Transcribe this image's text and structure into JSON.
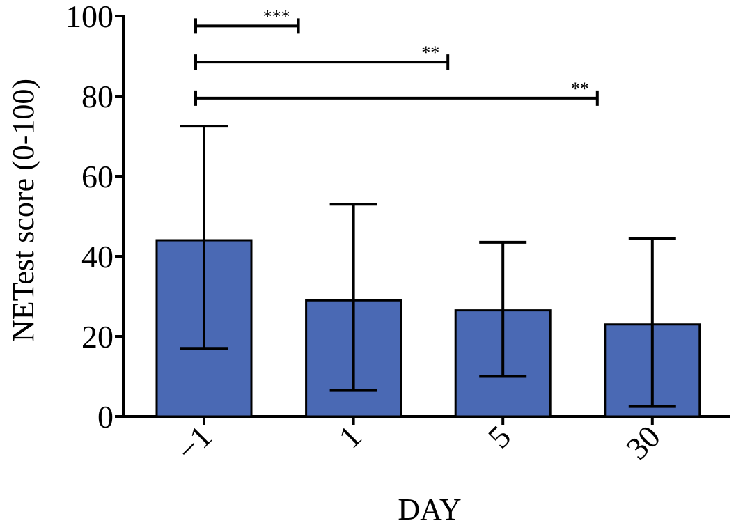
{
  "chart_data": {
    "type": "bar",
    "title": "",
    "xlabel": "DAY",
    "ylabel": "NETest score (0-100)",
    "categories": [
      "−1",
      "1",
      "5",
      "30"
    ],
    "values": [
      44,
      29,
      26.5,
      23
    ],
    "error_upper": [
      72.5,
      53,
      43.5,
      44.5
    ],
    "error_lower": [
      17,
      6.5,
      10,
      2.5
    ],
    "ylim": [
      0,
      100
    ],
    "yticks": [
      0,
      20,
      40,
      60,
      80,
      100
    ],
    "bar_color": "#4a69b4",
    "significance": [
      {
        "from": 0,
        "to": 1,
        "label": "***",
        "y": 97.5
      },
      {
        "from": 0,
        "to": 2,
        "label": "**",
        "y": 88.5
      },
      {
        "from": 0,
        "to": 3,
        "label": "**",
        "y": 79.5
      }
    ]
  }
}
